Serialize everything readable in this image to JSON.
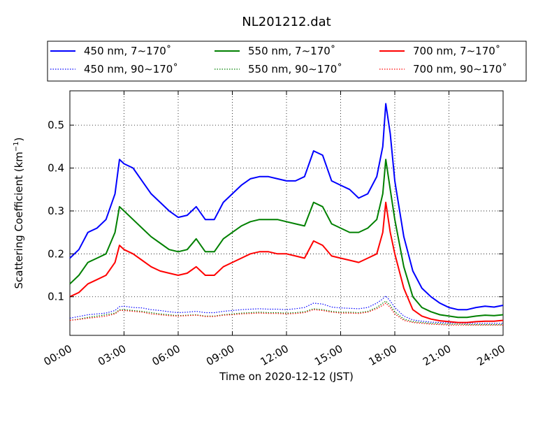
{
  "chart_data": {
    "type": "line",
    "title": "NL201212.dat",
    "xlabel": "Time on 2020-12-12 (JST)",
    "ylabel": "Scattering Coefficient (km",
    "ylabel_sup": "−1",
    "ylabel_close": ")",
    "xlim": [
      "00:00",
      "24:00"
    ],
    "ylim": [
      0.01,
      0.58
    ],
    "x_ticks": [
      "00:00",
      "03:00",
      "06:00",
      "09:00",
      "12:00",
      "15:00",
      "18:00",
      "21:00",
      "24:00"
    ],
    "y_ticks": [
      "0.1",
      "0.2",
      "0.3",
      "0.4",
      "0.5"
    ],
    "grid": true,
    "legend_position": "top",
    "x": [
      "00:00",
      "00:30",
      "01:00",
      "01:30",
      "02:00",
      "02:30",
      "02:45",
      "03:00",
      "03:30",
      "04:00",
      "04:30",
      "05:00",
      "05:30",
      "06:00",
      "06:30",
      "07:00",
      "07:30",
      "08:00",
      "08:30",
      "09:00",
      "09:30",
      "10:00",
      "10:30",
      "11:00",
      "11:30",
      "12:00",
      "12:30",
      "13:00",
      "13:30",
      "14:00",
      "14:30",
      "15:00",
      "15:30",
      "16:00",
      "16:30",
      "17:00",
      "17:20",
      "17:30",
      "17:45",
      "18:00",
      "18:30",
      "19:00",
      "19:30",
      "20:00",
      "20:30",
      "21:00",
      "21:30",
      "22:00",
      "22:30",
      "23:00",
      "23:30",
      "24:00"
    ],
    "series": [
      {
        "name": "450 nm, 7∼170˚",
        "color": "#0000ff",
        "style": "solid",
        "values": [
          0.19,
          0.21,
          0.25,
          0.26,
          0.28,
          0.34,
          0.42,
          0.41,
          0.4,
          0.37,
          0.34,
          0.32,
          0.3,
          0.285,
          0.29,
          0.31,
          0.28,
          0.28,
          0.32,
          0.34,
          0.36,
          0.375,
          0.38,
          0.38,
          0.375,
          0.37,
          0.37,
          0.38,
          0.44,
          0.43,
          0.37,
          0.36,
          0.35,
          0.33,
          0.34,
          0.38,
          0.45,
          0.55,
          0.48,
          0.37,
          0.24,
          0.16,
          0.12,
          0.1,
          0.085,
          0.075,
          0.07,
          0.07,
          0.075,
          0.078,
          0.076,
          0.08
        ]
      },
      {
        "name": "450 nm, 90∼170˚",
        "color": "#0000ff",
        "style": "dotted",
        "values": [
          0.05,
          0.054,
          0.058,
          0.06,
          0.062,
          0.068,
          0.077,
          0.078,
          0.075,
          0.074,
          0.07,
          0.068,
          0.065,
          0.063,
          0.064,
          0.066,
          0.063,
          0.063,
          0.066,
          0.068,
          0.07,
          0.071,
          0.072,
          0.071,
          0.071,
          0.07,
          0.072,
          0.075,
          0.085,
          0.083,
          0.076,
          0.074,
          0.073,
          0.072,
          0.075,
          0.085,
          0.095,
          0.102,
          0.09,
          0.075,
          0.055,
          0.046,
          0.043,
          0.041,
          0.04,
          0.039,
          0.039,
          0.038,
          0.038,
          0.038,
          0.038,
          0.038
        ]
      },
      {
        "name": "550 nm, 7∼170˚",
        "color": "#008000",
        "style": "solid",
        "values": [
          0.13,
          0.15,
          0.18,
          0.19,
          0.2,
          0.25,
          0.31,
          0.3,
          0.28,
          0.26,
          0.24,
          0.225,
          0.21,
          0.205,
          0.21,
          0.235,
          0.205,
          0.205,
          0.235,
          0.25,
          0.265,
          0.275,
          0.28,
          0.28,
          0.28,
          0.275,
          0.27,
          0.265,
          0.32,
          0.31,
          0.27,
          0.26,
          0.25,
          0.25,
          0.26,
          0.28,
          0.34,
          0.42,
          0.35,
          0.28,
          0.17,
          0.1,
          0.075,
          0.065,
          0.058,
          0.055,
          0.052,
          0.052,
          0.055,
          0.057,
          0.056,
          0.058
        ]
      },
      {
        "name": "550 nm, 90∼170˚",
        "color": "#008000",
        "style": "dotted",
        "values": [
          0.045,
          0.048,
          0.052,
          0.055,
          0.058,
          0.062,
          0.07,
          0.07,
          0.068,
          0.066,
          0.063,
          0.06,
          0.058,
          0.056,
          0.057,
          0.058,
          0.055,
          0.055,
          0.058,
          0.06,
          0.062,
          0.063,
          0.064,
          0.063,
          0.063,
          0.062,
          0.063,
          0.065,
          0.072,
          0.07,
          0.066,
          0.064,
          0.064,
          0.063,
          0.066,
          0.075,
          0.085,
          0.09,
          0.08,
          0.065,
          0.048,
          0.042,
          0.04,
          0.038,
          0.037,
          0.036,
          0.036,
          0.035,
          0.035,
          0.035,
          0.035,
          0.035
        ]
      },
      {
        "name": "700 nm, 7∼170˚",
        "color": "#ff0000",
        "style": "solid",
        "values": [
          0.1,
          0.11,
          0.13,
          0.14,
          0.15,
          0.18,
          0.22,
          0.21,
          0.2,
          0.185,
          0.17,
          0.16,
          0.155,
          0.15,
          0.155,
          0.17,
          0.15,
          0.15,
          0.17,
          0.18,
          0.19,
          0.2,
          0.205,
          0.205,
          0.2,
          0.2,
          0.195,
          0.19,
          0.23,
          0.22,
          0.195,
          0.19,
          0.185,
          0.18,
          0.19,
          0.2,
          0.25,
          0.32,
          0.25,
          0.2,
          0.12,
          0.07,
          0.055,
          0.048,
          0.044,
          0.042,
          0.04,
          0.04,
          0.042,
          0.043,
          0.043,
          0.045
        ]
      },
      {
        "name": "700 nm, 90∼170˚",
        "color": "#ff0000",
        "style": "dotted",
        "values": [
          0.045,
          0.047,
          0.05,
          0.052,
          0.055,
          0.06,
          0.068,
          0.068,
          0.066,
          0.064,
          0.06,
          0.058,
          0.056,
          0.055,
          0.056,
          0.057,
          0.054,
          0.054,
          0.057,
          0.058,
          0.06,
          0.061,
          0.062,
          0.061,
          0.061,
          0.06,
          0.061,
          0.063,
          0.07,
          0.068,
          0.064,
          0.062,
          0.062,
          0.061,
          0.064,
          0.072,
          0.08,
          0.085,
          0.075,
          0.06,
          0.045,
          0.04,
          0.038,
          0.036,
          0.035,
          0.034,
          0.034,
          0.034,
          0.034,
          0.034,
          0.034,
          0.034
        ]
      }
    ]
  }
}
